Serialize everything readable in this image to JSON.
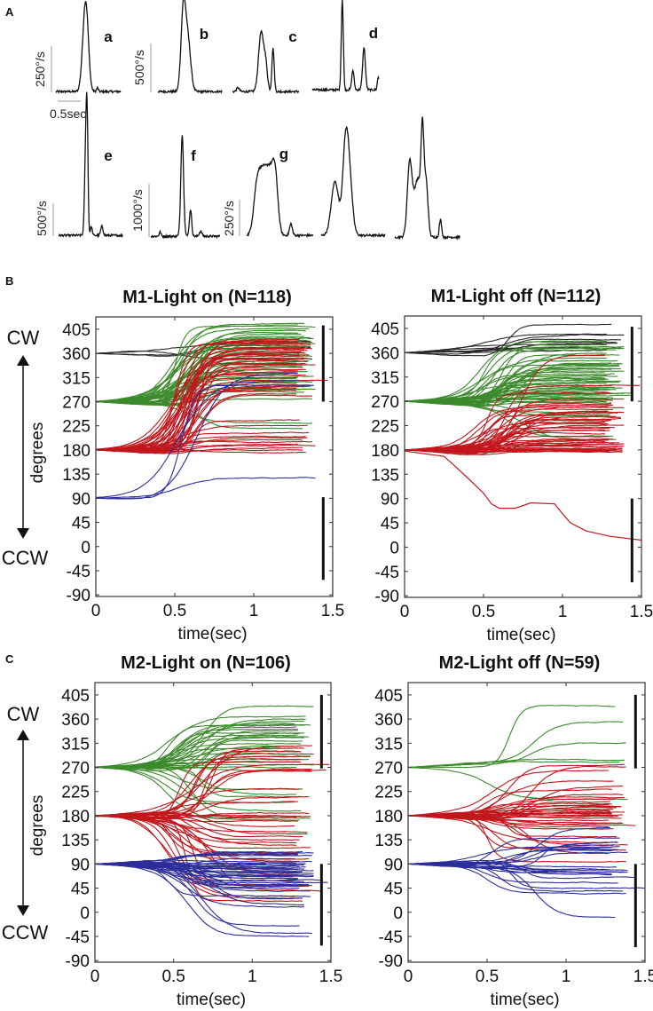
{
  "panel_labels": {
    "a": "A",
    "b": "B",
    "c": "C"
  },
  "chart_data": [
    {
      "type": "line",
      "panel": "A",
      "title": "",
      "ylabel_unit": "°/s",
      "time_scale_label": "0.5sec",
      "time_scale_value": 0.5,
      "traces": [
        {
          "label": "a",
          "scale_label": "250°/s",
          "scale_value": 250,
          "duration": 1.42,
          "peaks": [
            [
              0.62,
              300,
              0.055
            ],
            [
              0.67,
              250,
              0.05
            ],
            [
              0.9,
              20,
              0.02
            ]
          ]
        },
        {
          "label": "b",
          "scale_label": "500°/s",
          "scale_value": 500,
          "duration": 1.4,
          "peaks": [
            [
              0.55,
              820,
              0.05
            ],
            [
              0.65,
              520,
              0.06
            ],
            [
              -0.1,
              0,
              0.1
            ]
          ]
        },
        {
          "label": "c",
          "scale_label": "",
          "scale_value": 500,
          "duration": 1.45,
          "peaks": [
            [
              0.62,
              600,
              0.055
            ],
            [
              0.72,
              250,
              0.04
            ],
            [
              0.88,
              440,
              0.025
            ],
            [
              0.12,
              40,
              0.03
            ]
          ]
        },
        {
          "label": "d",
          "scale_label": "",
          "scale_value": 500,
          "duration": 1.45,
          "peaks": [
            [
              0.65,
              930,
              0.022
            ],
            [
              0.88,
              200,
              0.025
            ],
            [
              1.12,
              430,
              0.03
            ],
            [
              1.43,
              130,
              0.02
            ]
          ]
        },
        {
          "label": "e",
          "scale_label": "500°/s",
          "scale_value": 500,
          "duration": 1.4,
          "peaks": [
            [
              0.59,
              1300,
              0.025
            ],
            [
              0.62,
              1400,
              0.02
            ],
            [
              0.71,
              130,
              0.02
            ],
            [
              0.94,
              140,
              0.025
            ]
          ]
        },
        {
          "label": "f",
          "scale_label": "1000°/s",
          "scale_value": 1000,
          "duration": 1.5,
          "peaks": [
            [
              0.68,
              1900,
              0.03
            ],
            [
              0.86,
              500,
              0.025
            ],
            [
              1.08,
              90,
              0.03
            ],
            [
              0.2,
              80,
              0.02
            ]
          ]
        },
        {
          "label": "g",
          "scale_label": "250°/s",
          "scale_value": 250,
          "duration": 1.45,
          "peaks": [
            [
              0.22,
              300,
              0.07
            ],
            [
              0.35,
              360,
              0.08
            ],
            [
              0.5,
              380,
              0.08
            ],
            [
              0.62,
              360,
              0.06
            ],
            [
              0.96,
              80,
              0.03
            ]
          ]
        },
        {
          "label": "",
          "scale_label": "",
          "scale_value": 250,
          "duration": 1.4,
          "peaks": [
            [
              0.3,
              370,
              0.08
            ],
            [
              0.52,
              470,
              0.06
            ],
            [
              0.6,
              420,
              0.07
            ],
            [
              0.1,
              0,
              0.1
            ]
          ]
        },
        {
          "label": "",
          "scale_label": "",
          "scale_value": 250,
          "duration": 1.42,
          "peaks": [
            [
              0.32,
              480,
              0.05
            ],
            [
              0.5,
              400,
              0.09
            ],
            [
              0.6,
              560,
              0.03
            ],
            [
              0.68,
              340,
              0.04
            ],
            [
              0.99,
              120,
              0.025
            ]
          ]
        }
      ]
    },
    {
      "type": "line",
      "panel": "B",
      "title": "M1-Light on (N=118)",
      "xlabel": "time(sec)",
      "ylabel": "degrees",
      "cw_label": "CW",
      "ccw_label": "CCW",
      "xlim": [
        0,
        1.5
      ],
      "ylim": [
        -93,
        428
      ],
      "xticks": [
        "0",
        "0.5",
        "1",
        "1.5"
      ],
      "xtick_values": [
        0,
        0.5,
        1,
        1.5
      ],
      "yticks": [
        "405",
        "360",
        "315",
        "270",
        "225",
        "180",
        "135",
        "90",
        "45",
        "0",
        "-45",
        "-90"
      ],
      "ytick_values": [
        405,
        360,
        315,
        270,
        225,
        180,
        135,
        90,
        45,
        0,
        -45,
        -90
      ],
      "transition_time": 0.58,
      "transition_spread": 0.18,
      "range_bars": [
        [
          1.44,
          270,
          412
        ],
        [
          1.44,
          -62,
          92
        ]
      ],
      "series": [
        {
          "name": "start 360",
          "color": "#2a2a2a",
          "start": 360,
          "finals": [
            350,
            372,
            378,
            382
          ]
        },
        {
          "name": "start 270",
          "color": "#3b8a2c",
          "start": 270,
          "finals": [
            415,
            412,
            410,
            405,
            402,
            398,
            395,
            392,
            390,
            388,
            385,
            383,
            380,
            378,
            375,
            372,
            370,
            366,
            362,
            358,
            355,
            350,
            346,
            342,
            338,
            335,
            330,
            326,
            322,
            318,
            314,
            310,
            306,
            302,
            298,
            295,
            292,
            288,
            275,
            220,
            230
          ]
        },
        {
          "name": "start 180",
          "color": "#c1171d",
          "start": 180,
          "finals": [
            385,
            382,
            380,
            378,
            375,
            372,
            370,
            368,
            365,
            362,
            360,
            358,
            355,
            352,
            350,
            348,
            345,
            342,
            340,
            338,
            335,
            330,
            325,
            320,
            315,
            310,
            305,
            300,
            298,
            295,
            290,
            285,
            282,
            235,
            225,
            212,
            205,
            202,
            198,
            195,
            190,
            188,
            184,
            180,
            176
          ]
        },
        {
          "name": "start 90",
          "color": "#2c2f9b",
          "start": 90,
          "finals": [
            128,
            300,
            310,
            325
          ]
        }
      ],
      "special_traces": []
    },
    {
      "type": "line",
      "panel": "B",
      "title": "M1-Light off (N=112)",
      "xlabel": "time(sec)",
      "ylabel": "",
      "xlim": [
        0,
        1.5
      ],
      "ylim": [
        -93,
        428
      ],
      "xticks": [
        "0",
        "0.5",
        "1",
        "1.5"
      ],
      "xtick_values": [
        0,
        0.5,
        1,
        1.5
      ],
      "yticks": [
        "405",
        "360",
        "315",
        "270",
        "225",
        "180",
        "135",
        "90",
        "45",
        "0",
        "-45",
        "-90"
      ],
      "ytick_values": [
        405,
        360,
        315,
        270,
        225,
        180,
        135,
        90,
        45,
        0,
        -45,
        -90
      ],
      "transition_time": 0.6,
      "transition_spread": 0.3,
      "range_bars": [
        [
          1.44,
          270,
          408
        ],
        [
          1.44,
          -65,
          90
        ]
      ],
      "series": [
        {
          "name": "start 360",
          "color": "#2a2a2a",
          "start": 360,
          "finals": [
            412,
            395,
            393,
            385,
            380,
            378,
            375,
            370,
            368,
            365
          ]
        },
        {
          "name": "start 270",
          "color": "#3b8a2c",
          "start": 270,
          "finals": [
            382,
            375,
            372,
            368,
            365,
            360,
            355,
            350,
            345,
            342,
            340,
            338,
            335,
            332,
            330,
            328,
            325,
            322,
            320,
            318,
            316,
            314,
            312,
            310,
            308,
            305,
            303,
            300,
            298,
            296,
            294,
            292,
            290,
            288,
            286,
            284,
            282,
            280,
            278,
            276,
            274,
            272,
            270,
            268,
            250,
            242,
            205,
            200
          ]
        },
        {
          "name": "start 180",
          "color": "#c1171d",
          "start": 180,
          "finals": [
            355,
            300,
            285,
            275,
            265,
            262,
            260,
            258,
            255,
            252,
            250,
            248,
            245,
            242,
            240,
            238,
            236,
            234,
            232,
            230,
            228,
            225,
            222,
            220,
            218,
            215,
            210,
            205,
            200,
            198,
            196,
            194,
            192,
            190,
            188,
            186,
            184,
            183,
            182,
            181,
            180,
            179,
            178,
            177,
            176
          ]
        }
      ],
      "special_traces": [
        {
          "color": "#c1171d",
          "points": [
            [
              0,
              178
            ],
            [
              0.25,
              168
            ],
            [
              0.3,
              155
            ],
            [
              0.4,
              128
            ],
            [
              0.5,
              100
            ],
            [
              0.55,
              80
            ],
            [
              0.6,
              72
            ],
            [
              0.7,
              72
            ],
            [
              0.8,
              82
            ],
            [
              0.95,
              80
            ],
            [
              1.0,
              62
            ],
            [
              1.05,
              45
            ],
            [
              1.15,
              30
            ],
            [
              1.3,
              20
            ],
            [
              1.5,
              13
            ]
          ]
        }
      ]
    },
    {
      "type": "line",
      "panel": "C",
      "title": "M2-Light on (N=106)",
      "xlabel": "time(sec)",
      "ylabel": "degrees",
      "cw_label": "CW",
      "ccw_label": "CCW",
      "xlim": [
        0,
        1.5
      ],
      "ylim": [
        -93,
        428
      ],
      "xticks": [
        "0",
        "0.5",
        "1",
        "1.5"
      ],
      "xtick_values": [
        0,
        0.5,
        1,
        1.5
      ],
      "yticks": [
        "405",
        "360",
        "315",
        "270",
        "225",
        "180",
        "135",
        "90",
        "45",
        "0",
        "-45",
        "-90"
      ],
      "ytick_values": [
        405,
        360,
        315,
        270,
        225,
        180,
        135,
        90,
        45,
        0,
        -45,
        -90
      ],
      "transition_time": 0.6,
      "transition_spread": 0.3,
      "range_bars": [
        [
          1.44,
          268,
          405
        ],
        [
          1.44,
          -62,
          90
        ]
      ],
      "series": [
        {
          "name": "start 270",
          "color": "#3b8a2c",
          "start": 270,
          "finals": [
            385,
            365,
            360,
            355,
            352,
            350,
            348,
            345,
            340,
            338,
            335,
            333,
            330,
            328,
            325,
            320,
            315,
            310,
            305,
            300,
            295,
            290,
            285,
            280,
            275,
            270,
            265,
            230,
            220,
            215,
            205,
            190,
            175,
            172
          ]
        },
        {
          "name": "start 180",
          "color": "#c1171d",
          "start": 180,
          "finals": [
            310,
            305,
            300,
            295,
            290,
            285,
            280,
            275,
            268,
            265,
            262,
            230,
            215,
            205,
            185,
            180,
            178,
            176,
            170,
            160,
            150,
            145,
            140,
            135,
            130,
            125,
            120,
            112,
            108,
            100,
            95,
            80,
            70,
            60,
            52,
            48,
            40,
            30,
            26,
            20
          ]
        },
        {
          "name": "start 90",
          "color": "#2c2f9b",
          "start": 90,
          "finals": [
            112,
            110,
            108,
            105,
            100,
            95,
            92,
            90,
            88,
            86,
            84,
            82,
            80,
            78,
            76,
            74,
            72,
            70,
            68,
            66,
            64,
            62,
            60,
            58,
            55,
            52,
            50,
            48,
            45,
            40,
            30,
            25,
            15,
            10,
            -25,
            -40,
            -45
          ]
        }
      ],
      "special_traces": []
    },
    {
      "type": "line",
      "panel": "C",
      "title": "M2-Light off (N=59)",
      "xlabel": "time(sec)",
      "ylabel": "",
      "xlim": [
        0,
        1.5
      ],
      "ylim": [
        -93,
        428
      ],
      "xticks": [
        "0",
        "0.5",
        "1",
        "1.5"
      ],
      "xtick_values": [
        0,
        0.5,
        1,
        1.5
      ],
      "yticks": [
        "405",
        "360",
        "315",
        "270",
        "225",
        "180",
        "135",
        "90",
        "45",
        "0",
        "-45",
        "-90"
      ],
      "ytick_values": [
        405,
        360,
        315,
        270,
        225,
        180,
        135,
        90,
        45,
        0,
        -45,
        -90
      ],
      "transition_time": 0.65,
      "transition_spread": 0.4,
      "range_bars": [
        [
          1.44,
          268,
          405
        ],
        [
          1.44,
          -65,
          90
        ]
      ],
      "series": [
        {
          "name": "start 270",
          "color": "#3b8a2c",
          "start": 270,
          "finals": [
            385,
            355,
            315,
            285,
            280,
            210
          ]
        },
        {
          "name": "start 180",
          "color": "#c1171d",
          "start": 180,
          "finals": [
            265,
            275,
            270,
            245,
            235,
            228,
            220,
            215,
            210,
            205,
            202,
            200,
            198,
            196,
            194,
            192,
            190,
            188,
            186,
            185,
            184,
            182,
            180,
            178,
            176,
            172,
            168,
            165,
            162,
            160,
            155,
            140,
            130,
            125,
            120,
            115,
            110,
            95
          ]
        },
        {
          "name": "start 90",
          "color": "#2c2f9b",
          "start": 90,
          "finals": [
            158,
            138,
            130,
            125,
            122,
            118,
            115,
            112,
            85,
            80,
            78,
            76,
            75,
            74,
            72,
            70,
            65,
            55,
            45,
            40,
            35,
            -10
          ]
        }
      ],
      "special_traces": []
    }
  ]
}
